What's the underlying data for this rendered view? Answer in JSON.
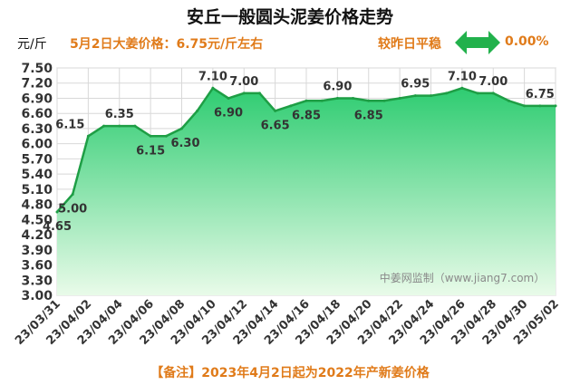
{
  "header": {
    "title": "安丘一般圆头泥姜价格走势",
    "unit": "元/斤",
    "price_note": "5月2日大姜价格：6.75元/斤左右",
    "compare_label": "较昨日平稳",
    "compare_value": "0.00%"
  },
  "footer": {
    "note": "【备注】2023年4月2日起为2022年产新姜价格"
  },
  "watermark": "中姜网监制（www.jiang7.com）",
  "colors": {
    "area_top": "#2ecc71",
    "area_bottom": "#e9fbe9",
    "line": "#1e9e45",
    "accent": "#e07b1a",
    "arrow": "#22b14c"
  },
  "chart_data": {
    "type": "area",
    "ylim": [
      3.0,
      7.5
    ],
    "yticks": [
      "3.00",
      "3.30",
      "3.60",
      "3.90",
      "4.20",
      "4.50",
      "4.80",
      "5.10",
      "5.40",
      "5.70",
      "6.00",
      "6.30",
      "6.60",
      "6.90",
      "7.20",
      "7.50"
    ],
    "xticks": [
      "23/03/31",
      "23/04/02",
      "23/04/04",
      "23/04/06",
      "23/04/08",
      "23/04/10",
      "23/04/12",
      "23/04/14",
      "23/04/16",
      "23/04/18",
      "23/04/20",
      "23/04/22",
      "23/04/24",
      "23/04/26",
      "23/04/28",
      "23/04/30",
      "23/05/02"
    ],
    "x": [
      "23/03/31",
      "23/04/01",
      "23/04/02",
      "23/04/03",
      "23/04/04",
      "23/04/05",
      "23/04/06",
      "23/04/07",
      "23/04/08",
      "23/04/09",
      "23/04/10",
      "23/04/11",
      "23/04/12",
      "23/04/13",
      "23/04/14",
      "23/04/15",
      "23/04/16",
      "23/04/17",
      "23/04/18",
      "23/04/19",
      "23/04/20",
      "23/04/21",
      "23/04/22",
      "23/04/23",
      "23/04/24",
      "23/04/25",
      "23/04/26",
      "23/04/27",
      "23/04/28",
      "23/04/29",
      "23/04/30",
      "23/05/01",
      "23/05/02"
    ],
    "values": [
      4.65,
      5.0,
      6.15,
      6.35,
      6.35,
      6.35,
      6.15,
      6.15,
      6.3,
      6.65,
      7.1,
      6.9,
      7.0,
      7.0,
      6.65,
      6.75,
      6.85,
      6.85,
      6.9,
      6.9,
      6.85,
      6.85,
      6.9,
      6.95,
      6.95,
      7.0,
      7.1,
      7.0,
      7.0,
      6.85,
      6.75,
      6.75,
      6.75
    ],
    "labels": [
      {
        "i": 0,
        "text": "4.65",
        "pos": "below"
      },
      {
        "i": 1,
        "text": "5.00",
        "pos": "below"
      },
      {
        "i": 2,
        "text": "6.15",
        "pos": "above-left"
      },
      {
        "i": 4,
        "text": "6.35",
        "pos": "above"
      },
      {
        "i": 6,
        "text": "6.15",
        "pos": "below"
      },
      {
        "i": 8,
        "text": "6.30",
        "pos": "right-below"
      },
      {
        "i": 10,
        "text": "7.10",
        "pos": "above"
      },
      {
        "i": 11,
        "text": "6.90",
        "pos": "below"
      },
      {
        "i": 12,
        "text": "7.00",
        "pos": "above"
      },
      {
        "i": 14,
        "text": "6.65",
        "pos": "below"
      },
      {
        "i": 16,
        "text": "6.85",
        "pos": "below"
      },
      {
        "i": 18,
        "text": "6.90",
        "pos": "above"
      },
      {
        "i": 20,
        "text": "6.85",
        "pos": "below"
      },
      {
        "i": 23,
        "text": "6.95",
        "pos": "above"
      },
      {
        "i": 26,
        "text": "7.10",
        "pos": "above"
      },
      {
        "i": 28,
        "text": "7.00",
        "pos": "above"
      },
      {
        "i": 31,
        "text": "6.75",
        "pos": "above"
      }
    ],
    "grid": true
  }
}
